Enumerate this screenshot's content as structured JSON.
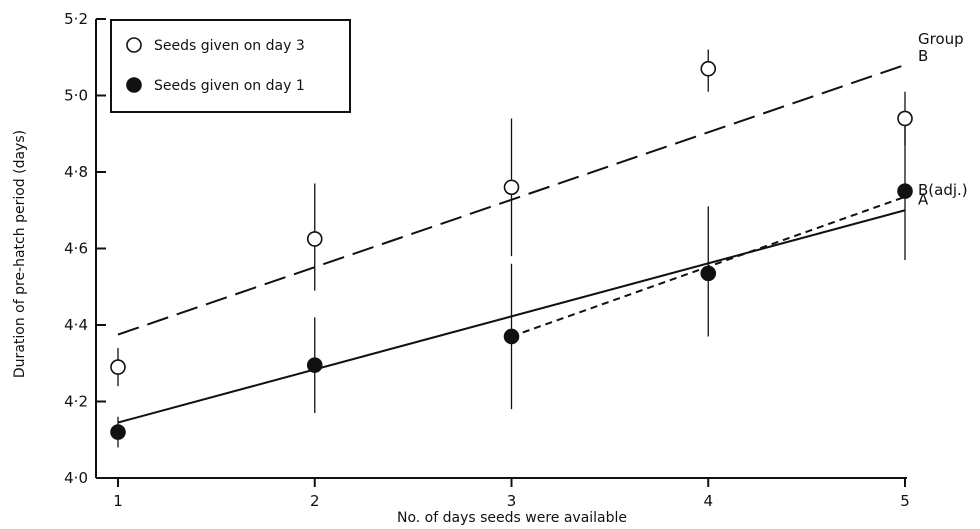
{
  "chart_data": {
    "type": "scatter",
    "title": "",
    "xlabel": "No. of days seeds were available",
    "ylabel": "Duration of pre-hatch period (days)",
    "xlim": [
      1,
      5
    ],
    "ylim": [
      4.0,
      5.2
    ],
    "x_ticks": [
      1,
      2,
      3,
      4,
      5
    ],
    "x_tick_labels": [
      "1",
      "2",
      "3",
      "4",
      "5"
    ],
    "y_ticks": [
      4.0,
      4.2,
      4.4,
      4.6,
      4.8,
      5.0,
      5.2
    ],
    "y_tick_labels": [
      "4·0",
      "4·2",
      "4·4",
      "4·6",
      "4·8",
      "5·0",
      "5·2"
    ],
    "grid": false,
    "legend_position": "top-left",
    "series": [
      {
        "name": "Seeds given on day 3",
        "marker": "open-circle",
        "points": [
          {
            "x": 1,
            "y": 4.29,
            "err_low": 4.24,
            "err_high": 4.34
          },
          {
            "x": 2,
            "y": 4.625,
            "err_low": 4.49,
            "err_high": 4.77
          },
          {
            "x": 3,
            "y": 4.76,
            "err_low": 4.58,
            "err_high": 4.94
          },
          {
            "x": 4,
            "y": 5.07,
            "err_low": 5.01,
            "err_high": 5.12
          },
          {
            "x": 5,
            "y": 4.94,
            "err_low": 4.87,
            "err_high": 5.01
          }
        ]
      },
      {
        "name": "Seeds given on day 1",
        "marker": "filled-circle",
        "points": [
          {
            "x": 1,
            "y": 4.12,
            "err_low": 4.08,
            "err_high": 4.16
          },
          {
            "x": 2,
            "y": 4.295,
            "err_low": 4.17,
            "err_high": 4.42
          },
          {
            "x": 3,
            "y": 4.37,
            "err_low": 4.18,
            "err_high": 4.56
          },
          {
            "x": 4,
            "y": 4.535,
            "err_low": 4.37,
            "err_high": 4.71
          },
          {
            "x": 5,
            "y": 4.75,
            "err_low": 4.57,
            "err_high": 4.94
          }
        ]
      }
    ],
    "fit_lines": [
      {
        "label": "B",
        "style": "long-dash",
        "x": [
          1,
          5
        ],
        "y": [
          4.375,
          5.08
        ]
      },
      {
        "label": "A",
        "style": "solid",
        "x": [
          1,
          5
        ],
        "y": [
          4.145,
          4.7
        ]
      },
      {
        "label": "B(adj.)",
        "style": "short-dash",
        "x": [
          3,
          5
        ],
        "y": [
          4.37,
          4.735
        ]
      }
    ],
    "line_group_heading": "Group"
  }
}
